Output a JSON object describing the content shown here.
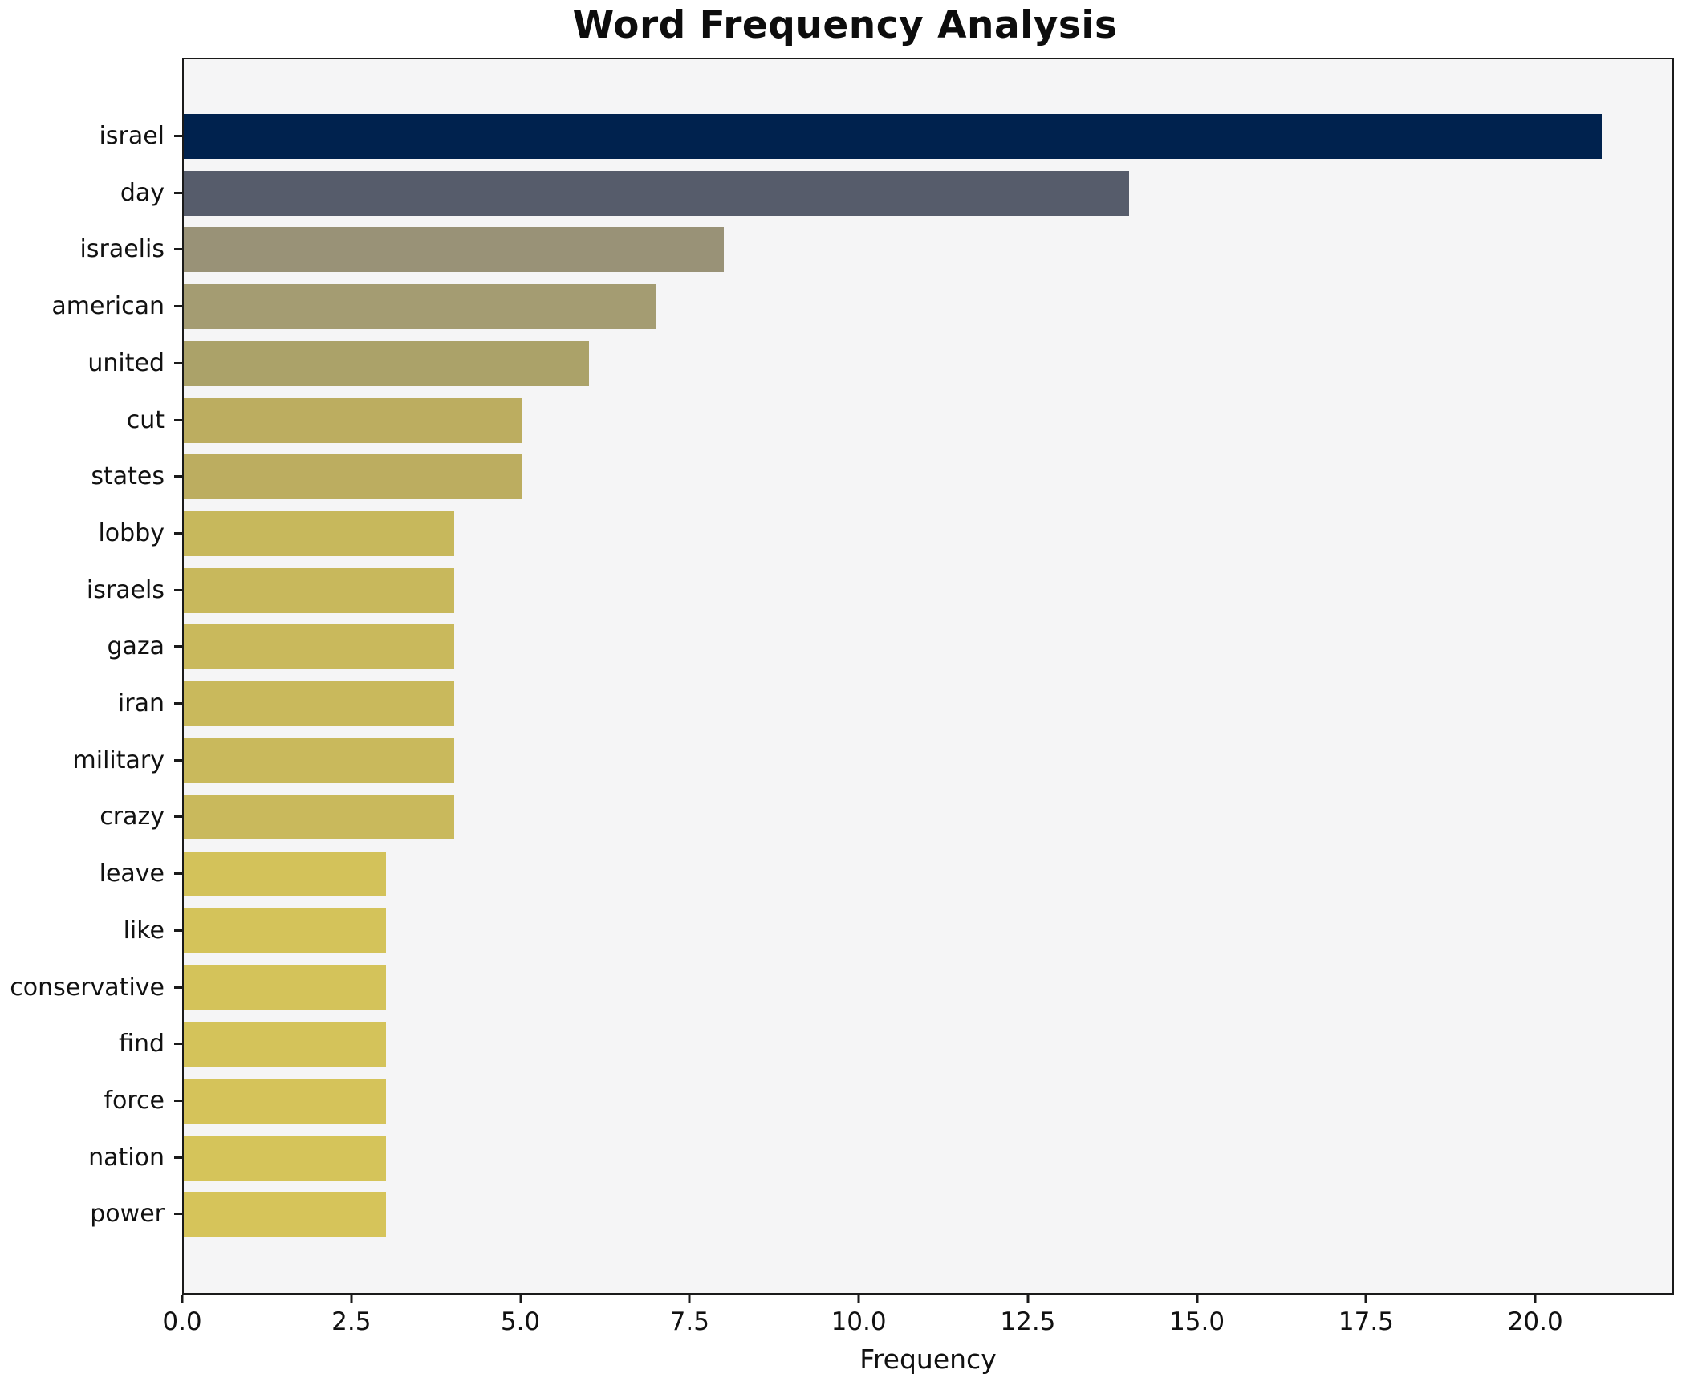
{
  "title": "Word Frequency Analysis",
  "xlabel": "Frequency",
  "colors": {
    "plot_background": "#f5f5f6",
    "figure_background": "#ffffff",
    "spine": "#1a1a1a",
    "text": "#111111"
  },
  "chart_data": {
    "type": "bar",
    "orientation": "horizontal",
    "title": "Word Frequency Analysis",
    "xlabel": "Frequency",
    "ylabel": "",
    "grid": false,
    "legend": null,
    "xlim": [
      0,
      22.05
    ],
    "x_ticks": [
      0,
      2.5,
      5,
      7.5,
      10,
      12.5,
      15,
      17.5,
      20
    ],
    "x_tick_labels": [
      "0.0",
      "2.5",
      "5.0",
      "7.5",
      "10.0",
      "12.5",
      "15.0",
      "17.5",
      "20.0"
    ],
    "categories": [
      "israel",
      "day",
      "israelis",
      "american",
      "united",
      "cut",
      "states",
      "lobby",
      "israels",
      "gaza",
      "iran",
      "military",
      "crazy",
      "leave",
      "like",
      "conservative",
      "find",
      "force",
      "nation",
      "power"
    ],
    "values": [
      21,
      14,
      8,
      7,
      6,
      5,
      5,
      4,
      4,
      4,
      4,
      4,
      4,
      3,
      3,
      3,
      3,
      3,
      3,
      3
    ],
    "bar_colors": [
      "#00224e",
      "#565c6b",
      "#999277",
      "#a49c72",
      "#aba269",
      "#bcad60",
      "#bcad60",
      "#c7b85c",
      "#c8b85c",
      "#c9b95c",
      "#c9b95c",
      "#c9b95c",
      "#c9b95c",
      "#d3c25a",
      "#d4c35a",
      "#d4c35a",
      "#d4c35a",
      "#d5c35a",
      "#d5c45a",
      "#d6c45a"
    ]
  }
}
